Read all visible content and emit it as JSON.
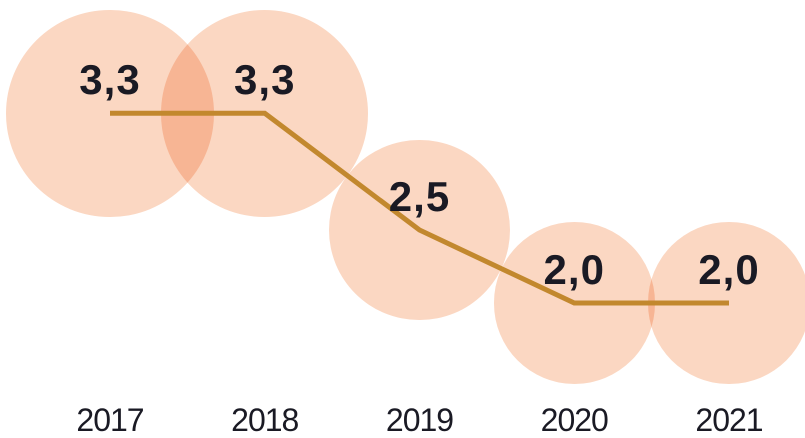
{
  "chart_data": {
    "type": "bubble-line",
    "title": "",
    "categories": [
      "2017",
      "2018",
      "2019",
      "2020",
      "2021"
    ],
    "values": [
      3.3,
      3.3,
      2.5,
      2.0,
      2.0
    ],
    "value_labels": [
      "3,3",
      "3,3",
      "2,5",
      "2,0",
      "2,0"
    ],
    "legend_position": "none",
    "grid": false,
    "axes_visible": false,
    "bubble_area_proportional_to_value": true,
    "colors": {
      "bubble_fill": "#FBD7C2",
      "bubble_overlap": "#F6B594",
      "trend_line": "#C2882E",
      "label_text": "#1A1A24",
      "background": "#FFFFFF"
    }
  }
}
